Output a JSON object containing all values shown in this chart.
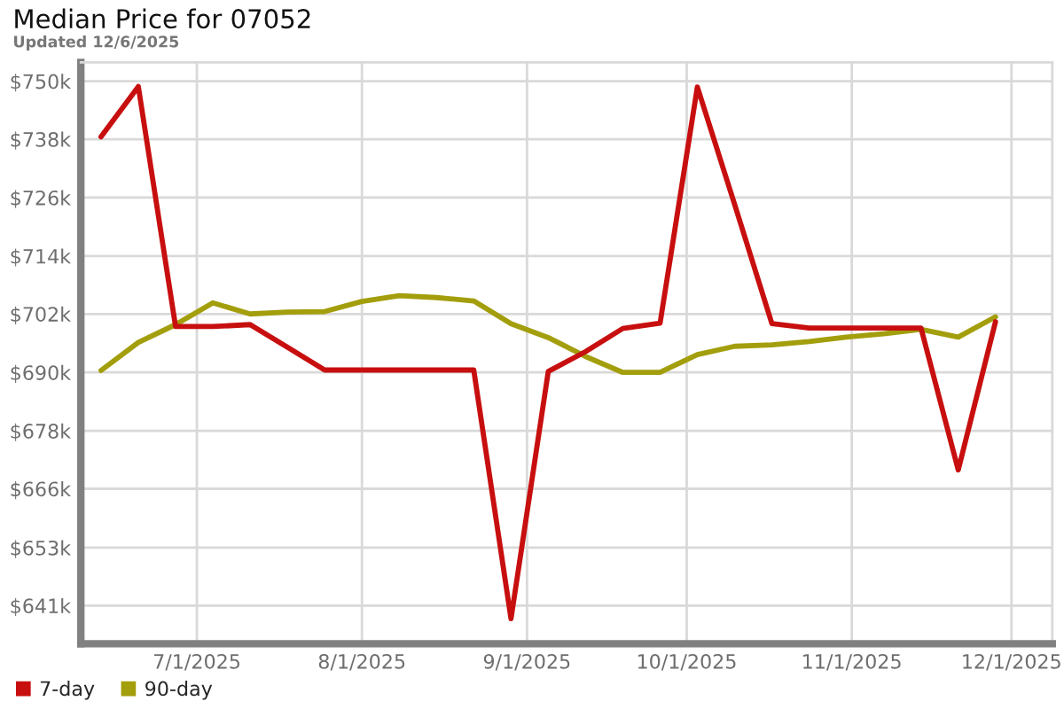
{
  "chart_data": {
    "type": "line",
    "title": "Median Price for 07052",
    "subtitle": "Updated 12/6/2025",
    "x": [
      "2025-06-13",
      "2025-06-20",
      "2025-06-27",
      "2025-07-04",
      "2025-07-11",
      "2025-07-18",
      "2025-07-25",
      "2025-08-01",
      "2025-08-08",
      "2025-08-15",
      "2025-08-22",
      "2025-08-29",
      "2025-09-05",
      "2025-09-12",
      "2025-09-19",
      "2025-09-26",
      "2025-10-03",
      "2025-10-10",
      "2025-10-17",
      "2025-10-24",
      "2025-10-31",
      "2025-11-07",
      "2025-11-14",
      "2025-11-21",
      "2025-11-28"
    ],
    "series": [
      {
        "name": "7-day",
        "color": "#c80f0f",
        "values": [
          738.5,
          748.9,
          699.2,
          699.2,
          699.6,
          694.9,
          690.2,
          690.2,
          690.2,
          690.2,
          690.2,
          638.7,
          689.9,
          694.0,
          698.8,
          699.9,
          748.8,
          724.5,
          699.8,
          698.9,
          698.9,
          698.9,
          698.9,
          669.5,
          700.2
        ]
      },
      {
        "name": "90-day",
        "color": "#a39e0c",
        "values": [
          690.1,
          695.9,
          699.6,
          704.1,
          701.8,
          702.2,
          702.3,
          704.4,
          705.6,
          705.2,
          704.5,
          699.8,
          696.9,
          693.0,
          689.7,
          689.7,
          693.4,
          695.1,
          695.4,
          696.1,
          697.0,
          697.7,
          698.6,
          697.0,
          701.2
        ]
      }
    ],
    "xlim": [
      "2025-06-09T05:00",
      "2025-12-08T16:00"
    ],
    "xticks": [
      {
        "value": "2025-07-01",
        "label": "7/1/2025"
      },
      {
        "value": "2025-08-01",
        "label": "8/1/2025"
      },
      {
        "value": "2025-09-01",
        "label": "9/1/2025"
      },
      {
        "value": "2025-10-01",
        "label": "10/1/2025"
      },
      {
        "value": "2025-11-01",
        "label": "11/1/2025"
      },
      {
        "value": "2025-12-01",
        "label": "12/1/2025"
      }
    ],
    "ylim": [
      633.5,
      753.9
    ],
    "yticks": [
      {
        "value": 641.4,
        "label": "$641k"
      },
      {
        "value": 653.4,
        "label": "$653k"
      },
      {
        "value": 665.6,
        "label": "$666k"
      },
      {
        "value": 677.6,
        "label": "$678k"
      },
      {
        "value": 689.7,
        "label": "$690k"
      },
      {
        "value": 701.8,
        "label": "$702k"
      },
      {
        "value": 713.8,
        "label": "$714k"
      },
      {
        "value": 725.9,
        "label": "$726k"
      },
      {
        "value": 738.0,
        "label": "$738k"
      },
      {
        "value": 750.0,
        "label": "$750k"
      }
    ],
    "grid": true,
    "legend": "bottom left",
    "line_style": "solid"
  }
}
